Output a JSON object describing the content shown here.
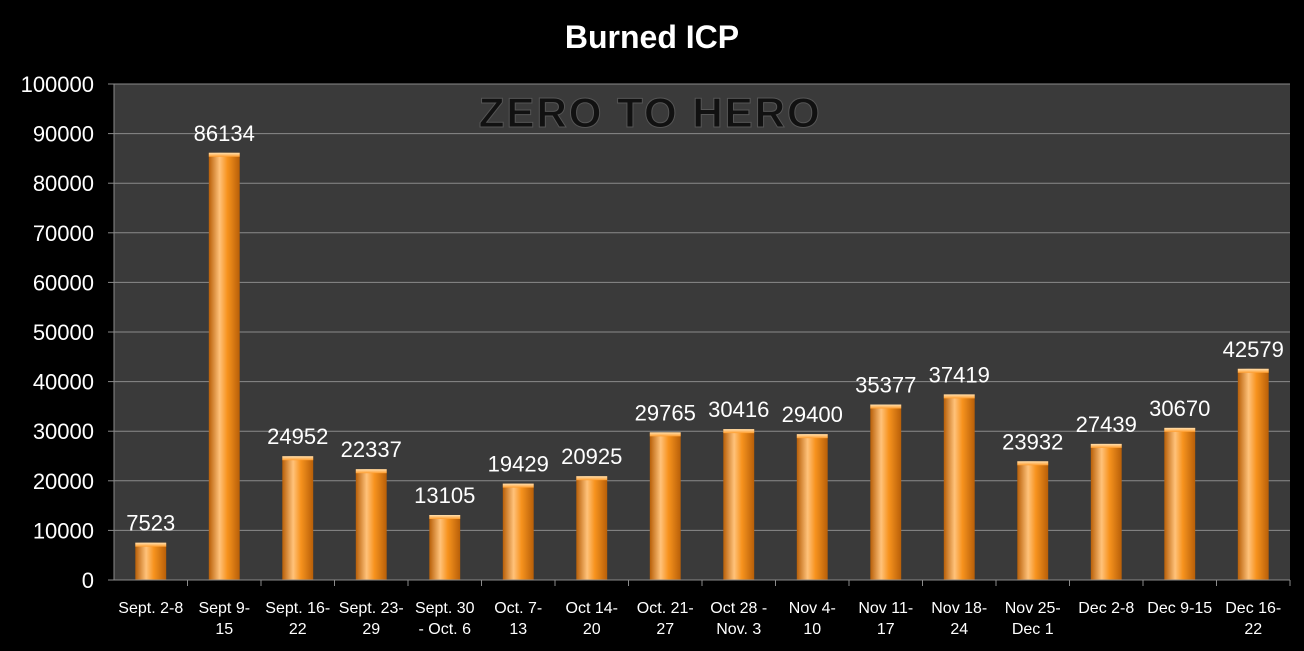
{
  "chart_data": {
    "type": "bar",
    "title": "Burned ICP",
    "watermark": "ZERO TO HERO",
    "categories": [
      [
        "Sept. 2-8"
      ],
      [
        "Sept 9-",
        "15"
      ],
      [
        "Sept. 16-",
        "22"
      ],
      [
        "Sept. 23-",
        "29"
      ],
      [
        "Sept. 30",
        "- Oct. 6"
      ],
      [
        "Oct. 7-",
        "13"
      ],
      [
        "Oct 14-",
        "20"
      ],
      [
        "Oct. 21-",
        "27"
      ],
      [
        "Oct 28 -",
        "Nov. 3"
      ],
      [
        "Nov 4-",
        "10"
      ],
      [
        "Nov 11-",
        "17"
      ],
      [
        "Nov 18-",
        "24"
      ],
      [
        "Nov 25-",
        "Dec 1"
      ],
      [
        "Dec 2-8"
      ],
      [
        "Dec 9-15"
      ],
      [
        "Dec 16-",
        "22"
      ]
    ],
    "values": [
      7523,
      86134,
      24952,
      22337,
      13105,
      19429,
      20925,
      29765,
      30416,
      29400,
      35377,
      37419,
      23932,
      27439,
      30670,
      42579
    ],
    "ylim": [
      0,
      100000
    ],
    "yticks": [
      0,
      10000,
      20000,
      30000,
      40000,
      50000,
      60000,
      70000,
      80000,
      90000,
      100000
    ],
    "grid": true,
    "legend": "none",
    "colors": {
      "background": "#000000",
      "plot_area": "#3a3a3a",
      "grid": "#8a8a8a",
      "bar_light": "#ffc27a",
      "bar_mid": "#f7931e",
      "bar_dark": "#b85f08",
      "text": "#ffffff",
      "watermark": "#111111"
    }
  }
}
